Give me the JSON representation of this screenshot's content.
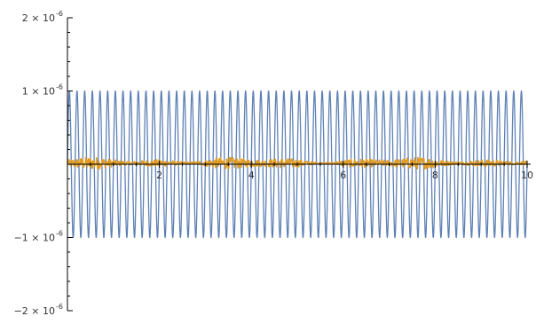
{
  "chart_data": {
    "type": "line",
    "title": "",
    "xlabel": "",
    "ylabel": "",
    "xlim": [
      0,
      10
    ],
    "ylim": [
      -2e-06,
      2e-06
    ],
    "x_ticks": [
      {
        "value": 2,
        "label": "2"
      },
      {
        "value": 4,
        "label": "4"
      },
      {
        "value": 6,
        "label": "6"
      },
      {
        "value": 8,
        "label": "8"
      },
      {
        "value": 10,
        "label": "10"
      }
    ],
    "y_ticks": [
      {
        "value": 2e-06,
        "mantissa": "2 × 10",
        "exponent": "-6"
      },
      {
        "value": 1e-06,
        "mantissa": "1 × 10",
        "exponent": "-6"
      },
      {
        "value": -1e-06,
        "mantissa": "−1 × 10",
        "exponent": "-6"
      },
      {
        "value": -2e-06,
        "mantissa": "−2 × 10",
        "exponent": "-6"
      }
    ],
    "series": [
      {
        "color": "#5e81b5",
        "kind": "sinusoid",
        "amplitude": 1e-06,
        "cycles": 60,
        "x_range": [
          0,
          10
        ]
      },
      {
        "color": "#e19c24",
        "kind": "noise",
        "amplitude_range": [
          -5e-08,
          1.2e-07
        ],
        "x_range": [
          0,
          10
        ]
      }
    ],
    "grid": false,
    "legend": "none"
  }
}
